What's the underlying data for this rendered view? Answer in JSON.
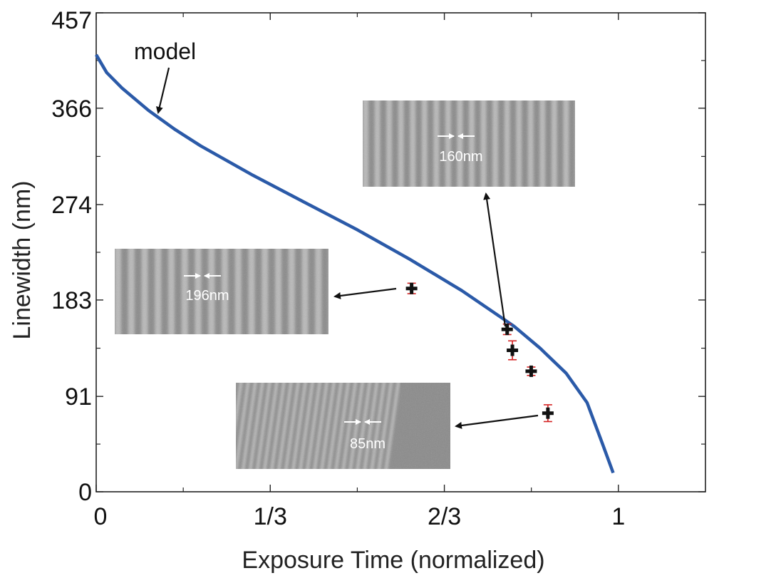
{
  "chart_data": {
    "type": "line",
    "xlabel": "Exposure Time (normalized)",
    "ylabel": "Linewidth (nm)",
    "xlim": [
      0,
      1.1667
    ],
    "ylim": [
      0,
      457
    ],
    "x_ticks": [
      {
        "value": 0,
        "label": "0"
      },
      {
        "value": 0.3333,
        "label": "1/3"
      },
      {
        "value": 0.6667,
        "label": "2/3"
      },
      {
        "value": 1,
        "label": "1"
      }
    ],
    "y_ticks": [
      {
        "value": 0,
        "label": "0"
      },
      {
        "value": 91,
        "label": "91"
      },
      {
        "value": 183,
        "label": "183"
      },
      {
        "value": 274,
        "label": "274"
      },
      {
        "value": 366,
        "label": "366"
      },
      {
        "value": 457,
        "label": "457"
      }
    ],
    "x_minor_ticks": [
      0.1667,
      0.5,
      0.8333
    ],
    "y_minor_ticks": [
      45.5,
      137,
      228.5,
      320,
      411.5
    ],
    "grid": false,
    "series": [
      {
        "kind": "line",
        "color": "#2b5aa8",
        "x": [
          0,
          0.02,
          0.05,
          0.1,
          0.15,
          0.2,
          0.3,
          0.4,
          0.5,
          0.6,
          0.65,
          0.7,
          0.8,
          0.85,
          0.9,
          0.94,
          0.97,
          0.99
        ],
        "y": [
          417,
          400,
          385,
          364,
          346,
          330,
          302,
          276,
          250,
          222,
          207,
          192,
          158,
          137,
          113,
          85,
          45,
          18
        ]
      },
      {
        "kind": "errorbar",
        "color": "#111111",
        "errcolor": "#d42020",
        "points": [
          {
            "x": 0.604,
            "y": 194,
            "err": 5
          },
          {
            "x": 0.787,
            "y": 155,
            "err": 5
          },
          {
            "x": 0.797,
            "y": 135,
            "err": 9
          },
          {
            "x": 0.833,
            "y": 115,
            "err": 4
          },
          {
            "x": 0.865,
            "y": 75,
            "err": 8
          }
        ]
      }
    ],
    "annotations": [
      {
        "text": "model"
      }
    ],
    "insets": [
      {
        "label": "160nm",
        "tone": "mid",
        "stripes": 18
      },
      {
        "label": "196nm",
        "tone": "mid",
        "stripes": 16
      },
      {
        "label": "85nm",
        "tone": "mid",
        "stripes": 30
      }
    ]
  }
}
